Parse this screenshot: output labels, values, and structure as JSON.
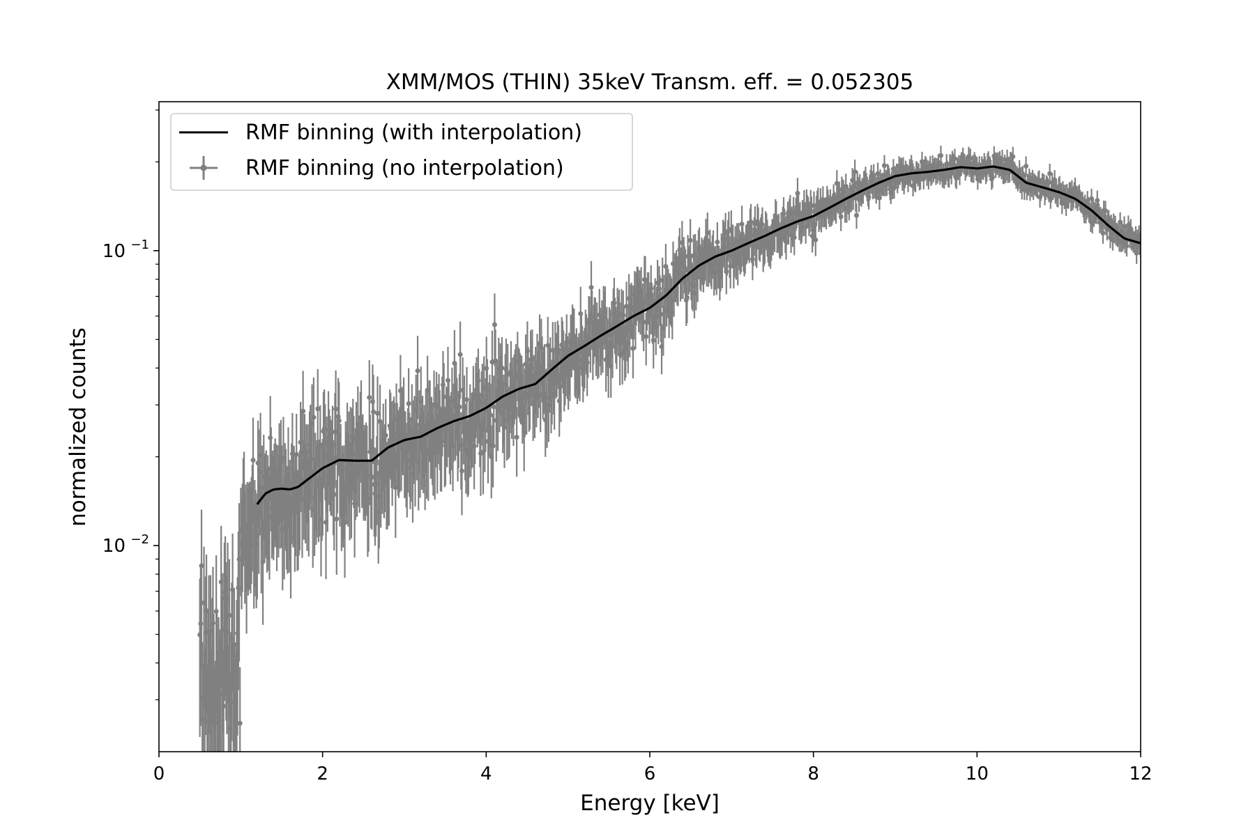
{
  "chart_data": {
    "type": "line",
    "title": "XMM/MOS (THIN) 35keV Transm. eff. = 0.052305",
    "xlabel": "Energy [keV]",
    "ylabel": "normalized counts",
    "xlim": [
      0,
      12
    ],
    "ylim": [
      0.002,
      0.32
    ],
    "yscale": "log",
    "x_ticks": [
      {
        "value": 0,
        "label": "0"
      },
      {
        "value": 2,
        "label": "2"
      },
      {
        "value": 4,
        "label": "4"
      },
      {
        "value": 6,
        "label": "6"
      },
      {
        "value": 8,
        "label": "8"
      },
      {
        "value": 10,
        "label": "10"
      },
      {
        "value": 12,
        "label": "12"
      }
    ],
    "y_ticks": [
      {
        "value": 0.01,
        "base": "10",
        "exponent": "−2"
      },
      {
        "value": 0.1,
        "base": "10",
        "exponent": "−1"
      }
    ],
    "y_minor_ticks": [
      0.003,
      0.004,
      0.005,
      0.006,
      0.007,
      0.008,
      0.009,
      0.02,
      0.03,
      0.04,
      0.05,
      0.06,
      0.07,
      0.08,
      0.09,
      0.2,
      0.3
    ],
    "grid": false,
    "legend_position": "top-left",
    "series": [
      {
        "name": "RMF binning (with interpolation)",
        "style": "line",
        "color": "#000000",
        "x": [
          1.2,
          1.3,
          1.4,
          1.5,
          1.6,
          1.7,
          1.8,
          2.0,
          2.2,
          2.4,
          2.6,
          2.8,
          3.0,
          3.2,
          3.4,
          3.6,
          3.8,
          4.0,
          4.2,
          4.4,
          4.6,
          4.8,
          5.0,
          5.2,
          5.4,
          5.6,
          5.8,
          6.0,
          6.2,
          6.4,
          6.6,
          6.8,
          7.0,
          7.2,
          7.4,
          7.6,
          7.8,
          8.0,
          8.2,
          8.4,
          8.6,
          8.8,
          9.0,
          9.2,
          9.4,
          9.6,
          9.8,
          10.0,
          10.2,
          10.4,
          10.6,
          10.8,
          11.0,
          11.2,
          11.4,
          11.6,
          11.8,
          12.0
        ],
        "y": [
          0.0138,
          0.015,
          0.0155,
          0.0156,
          0.0155,
          0.0158,
          0.0166,
          0.0183,
          0.0195,
          0.0194,
          0.0194,
          0.0215,
          0.0228,
          0.0234,
          0.025,
          0.0264,
          0.0275,
          0.0293,
          0.032,
          0.034,
          0.0353,
          0.0395,
          0.044,
          0.0475,
          0.0515,
          0.0555,
          0.06,
          0.064,
          0.0705,
          0.0805,
          0.089,
          0.0955,
          0.1,
          0.106,
          0.112,
          0.119,
          0.1255,
          0.131,
          0.14,
          0.15,
          0.16,
          0.17,
          0.179,
          0.183,
          0.185,
          0.188,
          0.192,
          0.19,
          0.193,
          0.188,
          0.17,
          0.164,
          0.158,
          0.15,
          0.137,
          0.122,
          0.11,
          0.106
        ]
      },
      {
        "name": "RMF binning (no interpolation)",
        "style": "errorbar",
        "color": "#808080",
        "x_range": [
          0.5,
          12.0
        ],
        "n_points": 1150,
        "y_floor": 0.002,
        "error_fraction_low_energy": 0.4,
        "error_fraction_high_energy": 0.08
      }
    ]
  }
}
